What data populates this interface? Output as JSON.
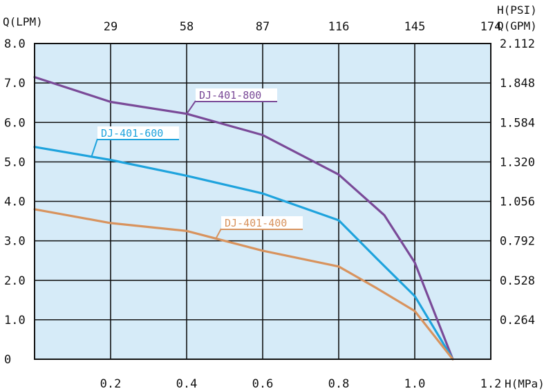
{
  "chart_data": {
    "type": "line",
    "title": "",
    "xlabel": "H(MPa)",
    "ylabel": "Q(LPM)",
    "xlim": [
      0,
      1.2
    ],
    "ylim": [
      0,
      8.0
    ],
    "x_ticks": [
      "0.2",
      "0.4",
      "0.6",
      "0.8",
      "1.0",
      "1.2"
    ],
    "y_ticks": [
      "0",
      "1.0",
      "2.0",
      "3.0",
      "4.0",
      "5.0",
      "6.0",
      "7.0",
      "8.0"
    ],
    "top_axis": {
      "label": "H(PSI)",
      "ticks": [
        "29",
        "58",
        "87",
        "116",
        "145",
        "174"
      ]
    },
    "right_axis": {
      "label": "Q(GPM)",
      "ticks": [
        "0.264",
        "0.528",
        "0.792",
        "1.056",
        "1.320",
        "1.584",
        "1.848",
        "2.112"
      ]
    },
    "grid": true,
    "background_color": "#d6ebf8",
    "series": [
      {
        "name": "DJ-401-800",
        "color": "#7a4a98",
        "x": [
          0,
          0.2,
          0.4,
          0.6,
          0.8,
          0.92,
          1.0,
          1.1
        ],
        "y": [
          7.15,
          6.52,
          6.22,
          5.68,
          4.68,
          3.65,
          2.45,
          0
        ]
      },
      {
        "name": "DJ-401-600",
        "color": "#1ea3dd",
        "x": [
          0,
          0.2,
          0.4,
          0.6,
          0.8,
          0.9,
          1.0,
          1.1
        ],
        "y": [
          5.38,
          5.05,
          4.65,
          4.2,
          3.52,
          2.55,
          1.6,
          0
        ]
      },
      {
        "name": "DJ-401-400",
        "color": "#d8935e",
        "x": [
          0,
          0.2,
          0.4,
          0.6,
          0.8,
          0.9,
          1.0,
          1.1
        ],
        "y": [
          3.8,
          3.45,
          3.25,
          2.75,
          2.35,
          1.8,
          1.22,
          0
        ]
      }
    ]
  }
}
